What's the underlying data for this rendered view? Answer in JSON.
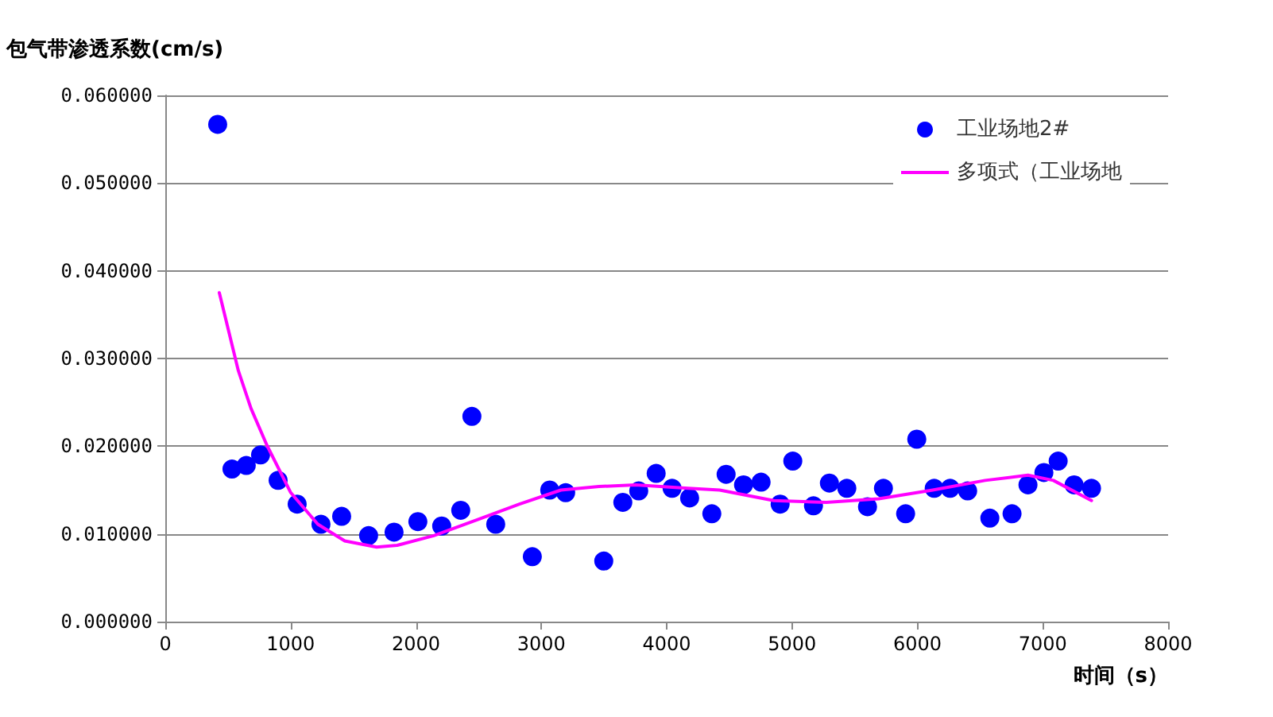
{
  "chart_data": {
    "type": "scatter",
    "xlabel": "时间（s）",
    "ylabel": "包气带渗透系数(cm/s)",
    "xlim": [
      0,
      8000
    ],
    "xticks": [
      0,
      1000,
      2000,
      3000,
      4000,
      5000,
      6000,
      7000,
      8000
    ],
    "ylim": [
      0,
      0.06
    ],
    "yticks": [
      {
        "value": 0,
        "label": "0.000000"
      },
      {
        "value": 0.01,
        "label": "0.010000"
      },
      {
        "value": 0.02,
        "label": "0.020000"
      },
      {
        "value": 0.03,
        "label": "0.030000"
      },
      {
        "value": 0.04,
        "label": "0.040000"
      },
      {
        "value": 0.05,
        "label": "0.050000"
      },
      {
        "value": 0.06,
        "label": "0.060000"
      }
    ],
    "grid": "y",
    "legend": "top right",
    "series": [
      {
        "name": "工业场地2#",
        "marker": "circle",
        "color": "#0000ff",
        "x": [
          418,
          532,
          646,
          760,
          900,
          1052,
          1242,
          1407,
          1622,
          1825,
          2015,
          2205,
          2357,
          2446,
          2636,
          2928,
          3067,
          3194,
          3498,
          3650,
          3777,
          3916,
          4043,
          4183,
          4360,
          4474,
          4613,
          4753,
          4905,
          5006,
          5171,
          5298,
          5437,
          5602,
          5729,
          5906,
          5995,
          6134,
          6261,
          6401,
          6578,
          6755,
          6882,
          7009,
          7123,
          7250,
          7389
        ],
        "values": [
          0.0567,
          0.0174,
          0.0178,
          0.019,
          0.0161,
          0.0134,
          0.0111,
          0.012,
          0.0098,
          0.0102,
          0.0114,
          0.0109,
          0.0127,
          0.0234,
          0.0111,
          0.0074,
          0.015,
          0.0147,
          0.0069,
          0.0136,
          0.0149,
          0.0169,
          0.0152,
          0.0141,
          0.0123,
          0.0168,
          0.0156,
          0.0159,
          0.0134,
          0.0183,
          0.0132,
          0.0158,
          0.0152,
          0.0131,
          0.0152,
          0.0123,
          0.0208,
          0.0152,
          0.0152,
          0.0149,
          0.0118,
          0.0123,
          0.0156,
          0.017,
          0.0183,
          0.0156,
          0.0152
        ]
      },
      {
        "name": "多项式（工业场地",
        "type": "line",
        "marker": "none",
        "line_style": "solid",
        "color": "#ff00ff",
        "x": [
          431,
          583,
          684,
          811,
          1001,
          1217,
          1432,
          1686,
          1850,
          2142,
          2484,
          2826,
          3156,
          3460,
          3752,
          4170,
          4423,
          4854,
          5273,
          5691,
          6122,
          6540,
          6882,
          7085,
          7389
        ],
        "values": [
          0.0375,
          0.0286,
          0.0243,
          0.0201,
          0.0147,
          0.0111,
          0.0092,
          0.0085,
          0.0087,
          0.0098,
          0.0116,
          0.0134,
          0.015,
          0.0154,
          0.0156,
          0.0152,
          0.015,
          0.0138,
          0.0136,
          0.014,
          0.015,
          0.0161,
          0.0167,
          0.0161,
          0.0138
        ]
      }
    ]
  }
}
